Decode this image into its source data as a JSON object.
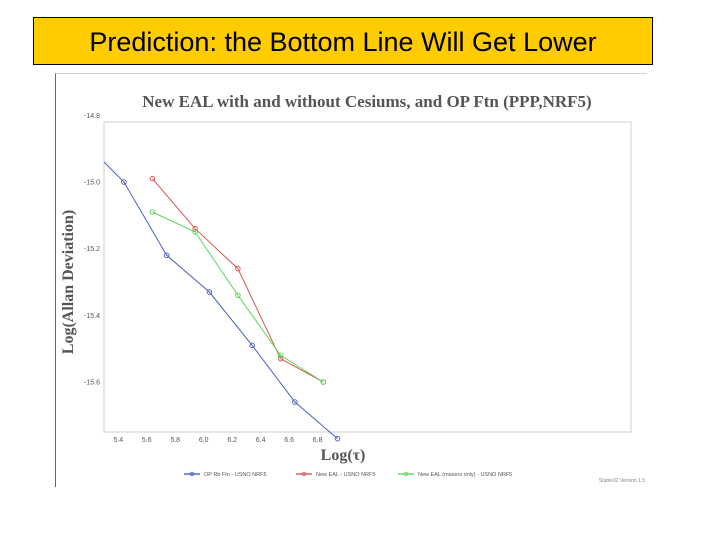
{
  "slide": {
    "title": "Prediction: the Bottom Line Will Get Lower"
  },
  "chart_data": {
    "type": "line",
    "title": "New EAL with and without Cesiums, and OP Ftn (PPP,NRF5)",
    "xlabel": "Log(τ)",
    "ylabel": "Log(Allan Deviation)",
    "xlim": [
      5.3,
      9.0
    ],
    "ylim": [
      -15.75,
      -14.82
    ],
    "x_ticks": [
      "5.4",
      "5.6",
      "5.8",
      "6.0",
      "6.2",
      "6.4",
      "6.6",
      "6.8"
    ],
    "y_ticks": [
      "-14.8",
      "-15.0",
      "-15.2",
      "-15.4",
      "-15.6"
    ],
    "grid": false,
    "legend_position": "bottom",
    "footnote": "Stable32 Version 1.5",
    "series": [
      {
        "name": "OP Rb Ftn - USNO NRF5",
        "color": "#4a5fc1",
        "points": [
          [
            5.3,
            -14.94
          ],
          [
            5.44,
            -15.0
          ],
          [
            5.74,
            -15.22
          ],
          [
            6.04,
            -15.33
          ],
          [
            6.34,
            -15.49
          ],
          [
            6.64,
            -15.66
          ],
          [
            6.94,
            -15.77
          ]
        ]
      },
      {
        "name": "New EAL - USNO NRF5",
        "color": "#d9534f",
        "points": [
          [
            5.64,
            -14.99
          ],
          [
            5.94,
            -15.14
          ],
          [
            6.24,
            -15.26
          ],
          [
            6.54,
            -15.53
          ],
          [
            6.84,
            -15.6
          ]
        ]
      },
      {
        "name": "New EAL (masers only) - USNO NRF5",
        "color": "#5cd65c",
        "points": [
          [
            5.64,
            -15.09
          ],
          [
            5.94,
            -15.15
          ],
          [
            6.24,
            -15.34
          ],
          [
            6.54,
            -15.52
          ],
          [
            6.84,
            -15.6
          ]
        ]
      }
    ]
  }
}
